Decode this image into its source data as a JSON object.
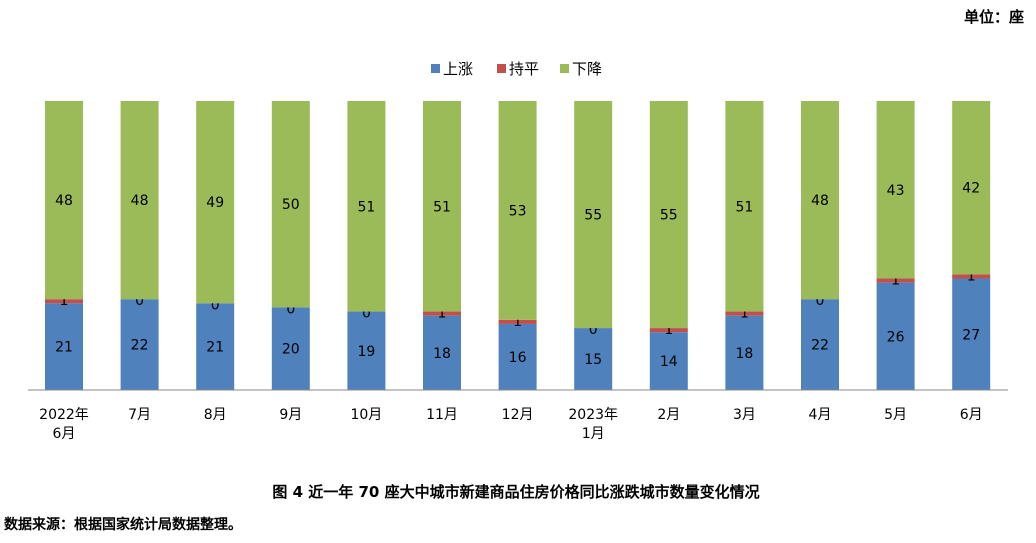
{
  "unit_label": "单位：座",
  "caption": "图 4    近一年 70 座大中城市新建商品住房价格同比涨跌城市数量变化情况",
  "source": "数据来源：根据国家统计局数据整理。",
  "colors": {
    "上涨": "#4F81BD",
    "持平": "#C0504D",
    "下降": "#9BBB59"
  },
  "chart_data": {
    "type": "bar",
    "stacked": true,
    "title": "",
    "xlabel": "",
    "ylabel": "",
    "unit": "单位：座",
    "ylim": [
      0,
      70
    ],
    "grid": false,
    "legend_position": "top",
    "categories": [
      [
        "2022年",
        "6月"
      ],
      [
        "7月"
      ],
      [
        "8月"
      ],
      [
        "9月"
      ],
      [
        "10月"
      ],
      [
        "11月"
      ],
      [
        "12月"
      ],
      [
        "2023年",
        "1月"
      ],
      [
        "2月"
      ],
      [
        "3月"
      ],
      [
        "4月"
      ],
      [
        "5月"
      ],
      [
        "6月"
      ]
    ],
    "series": [
      {
        "name": "上涨",
        "values": [
          21,
          22,
          21,
          20,
          19,
          18,
          16,
          15,
          14,
          18,
          22,
          26,
          27
        ]
      },
      {
        "name": "持平",
        "values": [
          1,
          0,
          0,
          0,
          0,
          1,
          1,
          0,
          1,
          1,
          0,
          1,
          1
        ]
      },
      {
        "name": "下降",
        "values": [
          48,
          48,
          49,
          50,
          51,
          51,
          53,
          55,
          55,
          51,
          48,
          43,
          42
        ]
      }
    ]
  }
}
